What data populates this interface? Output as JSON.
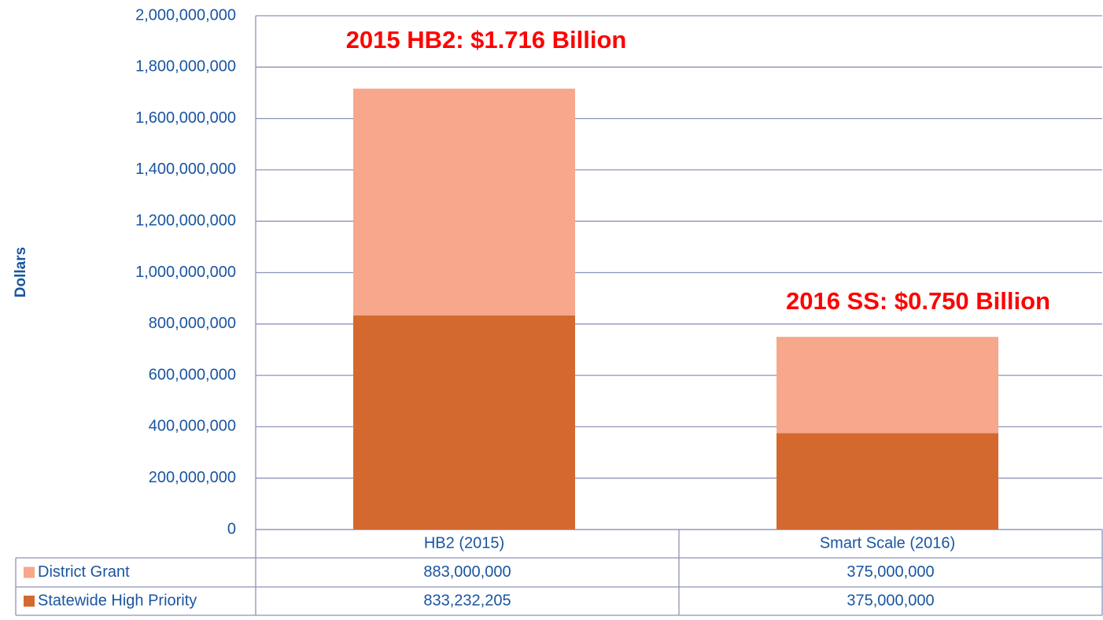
{
  "chart_data": {
    "type": "stacked_bar",
    "y_label": "Dollars",
    "annotations": [
      "2015 HB2: $1.716 Billion",
      "2016 SS: $0.750 Billion"
    ],
    "categories": [
      "HB2 (2015)",
      "Smart Scale (2016)"
    ],
    "series": [
      {
        "name": "District Grant",
        "color": "#f7a78b",
        "values": [
          883000000,
          375000000
        ],
        "value_labels": [
          "883,000,000",
          "375,000,000"
        ]
      },
      {
        "name": "Statewide High Priority",
        "color": "#d4692f",
        "values": [
          833232205,
          375000000
        ],
        "value_labels": [
          "833,232,205",
          "375,000,000"
        ]
      }
    ],
    "ylim": [
      0,
      2000000000
    ],
    "yticks": [
      0,
      {
        "value": 200000000,
        "label": "200,000,000"
      },
      {
        "value": 400000000,
        "label": "400,000,000"
      },
      {
        "value": 600000000,
        "label": "600,000,000"
      },
      {
        "value": 800000000,
        "label": "800,000,000"
      },
      {
        "value": 1000000000,
        "label": "1,000,000,000"
      },
      {
        "value": 1200000000,
        "label": "1,200,000,000"
      },
      {
        "value": 1400000000,
        "label": "1,400,000,000"
      },
      {
        "value": 1600000000,
        "label": "1,600,000,000"
      },
      {
        "value": 1800000000,
        "label": "1,800,000,000"
      },
      {
        "value": 2000000000,
        "label": "2,000,000,000"
      }
    ],
    "grid": true
  }
}
